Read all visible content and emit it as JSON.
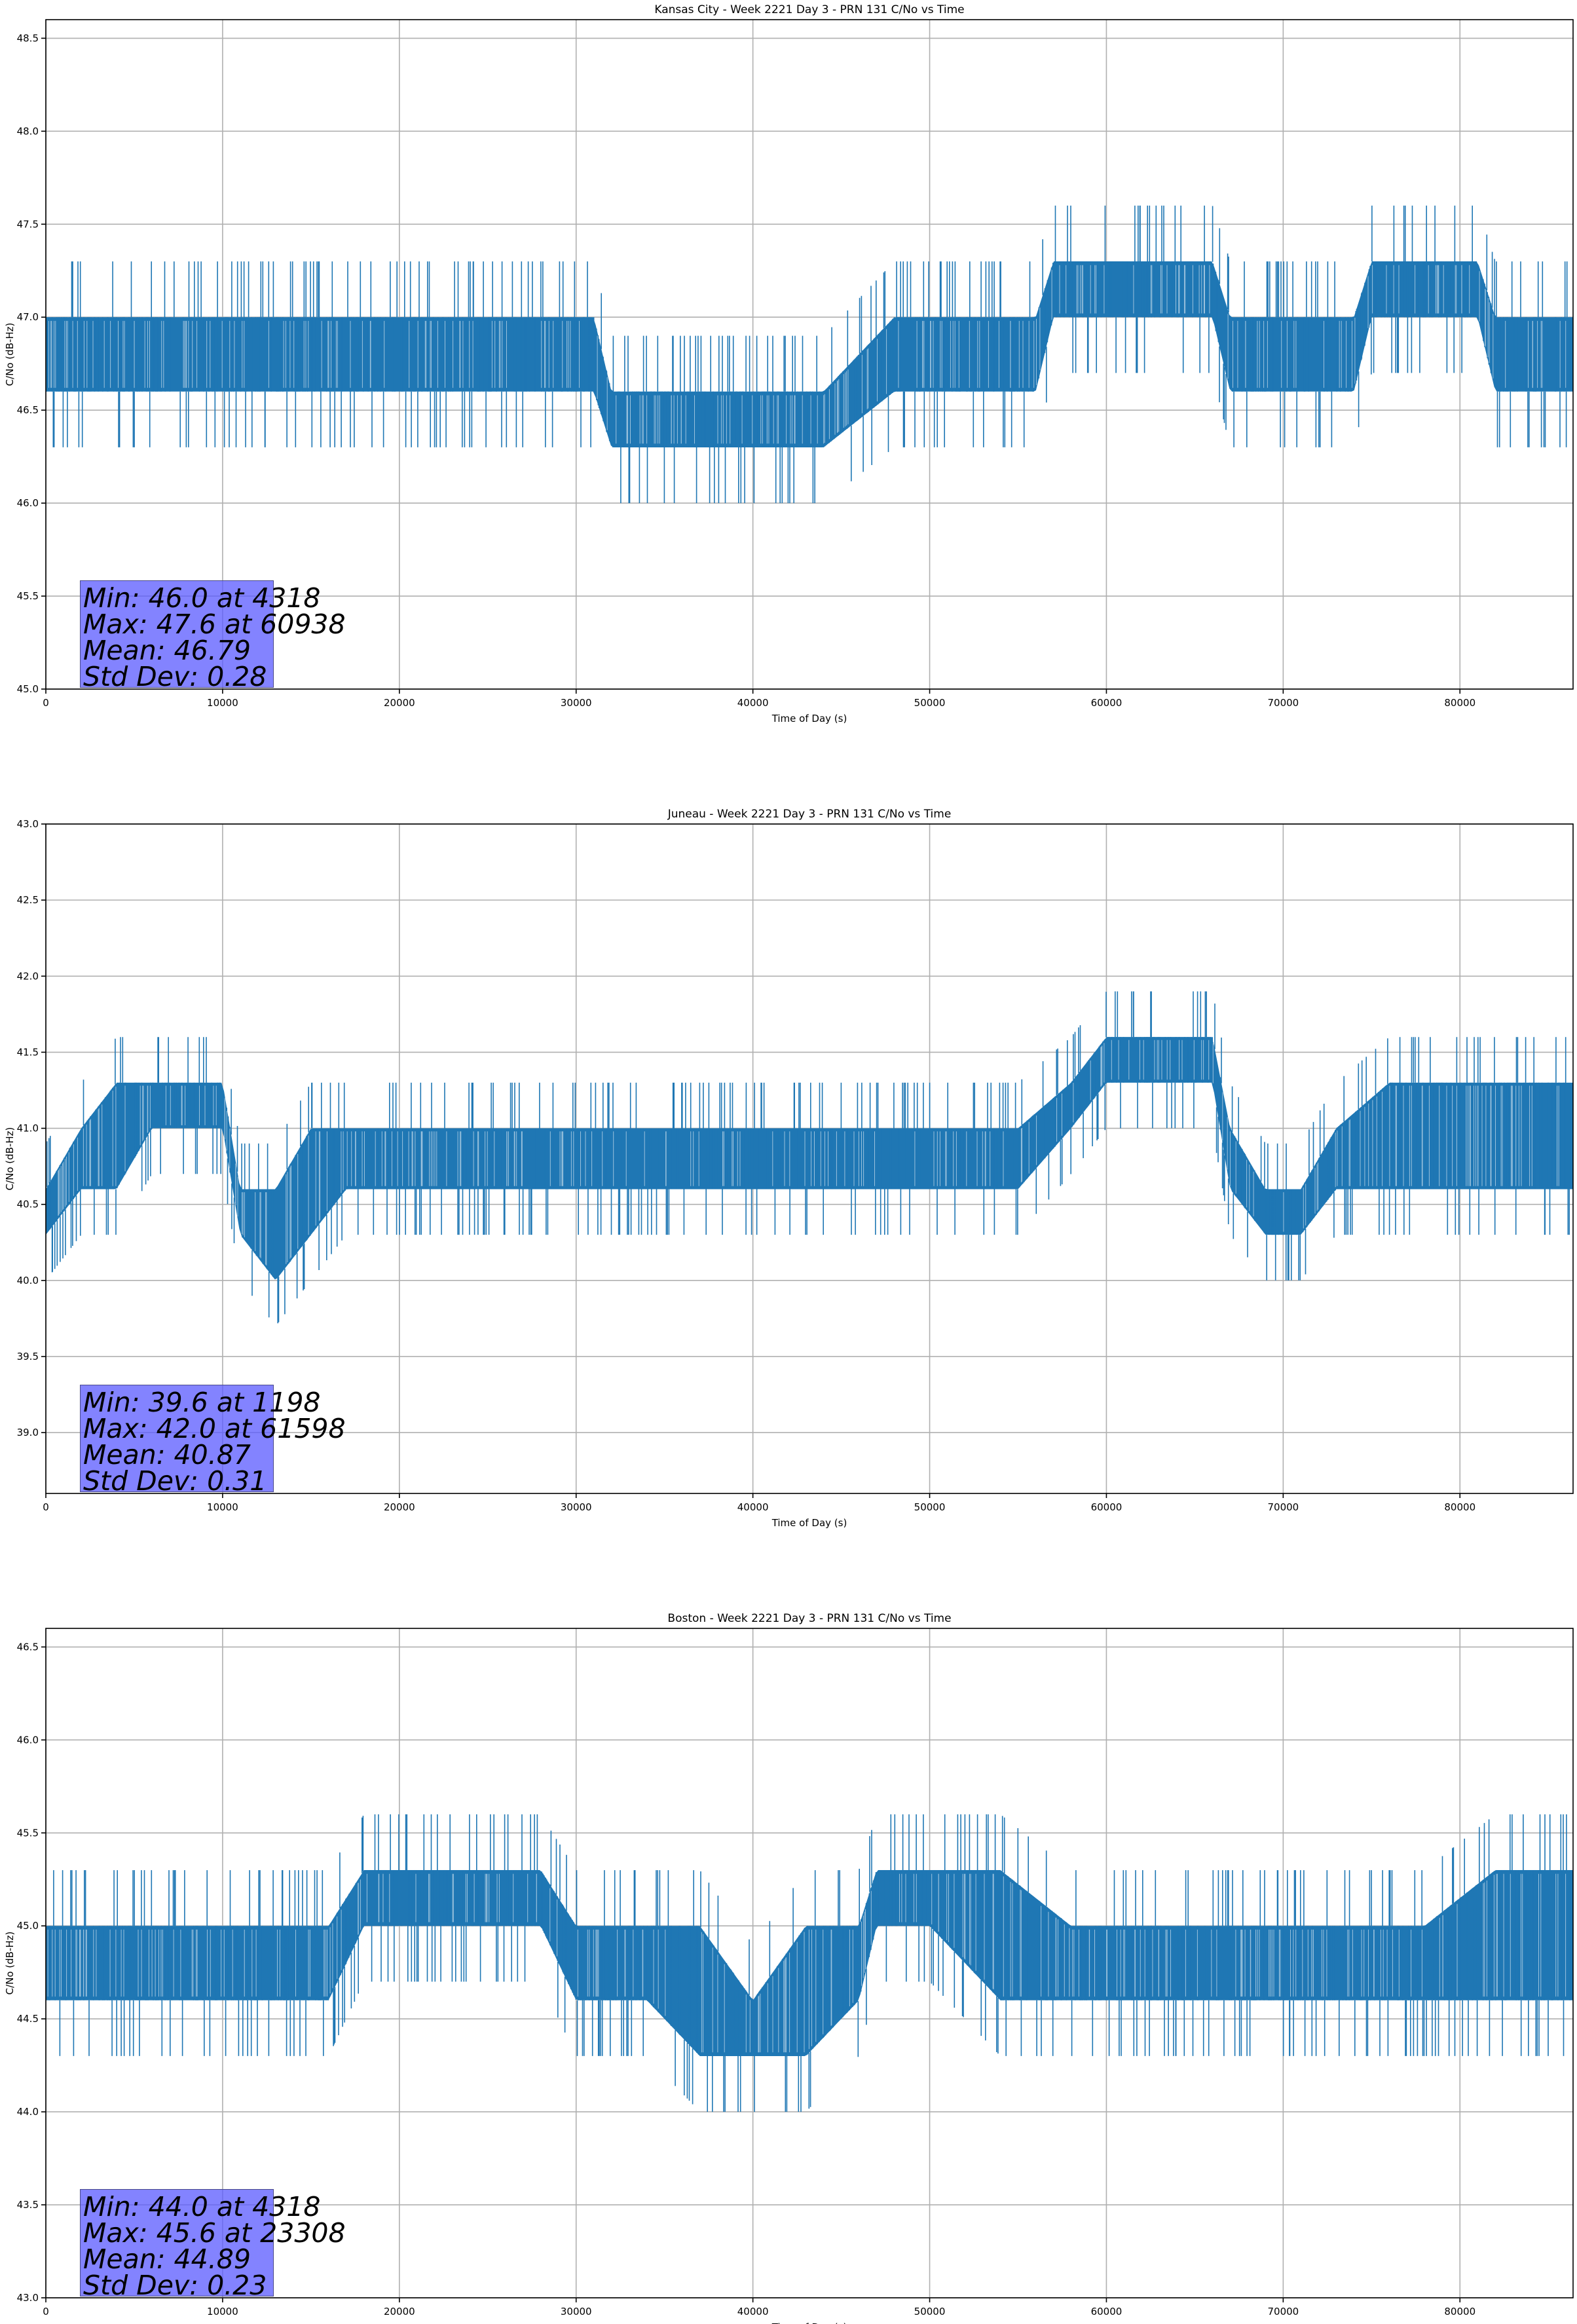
{
  "chart_data": [
    {
      "type": "line",
      "title": "Kansas City - Week 2221 Day 3 - PRN 131 C/No vs Time",
      "xlabel": "Time of Day (s)",
      "ylabel": "C/No (dB-Hz)",
      "xlim": [
        0,
        86400
      ],
      "ylim": [
        45.0,
        48.6
      ],
      "xticks": [
        "0",
        "10000",
        "20000",
        "30000",
        "40000",
        "50000",
        "60000",
        "70000",
        "80000"
      ],
      "yticks": [
        "45.0",
        "45.5",
        "46.0",
        "46.5",
        "47.0",
        "47.5",
        "48.0",
        "48.5"
      ],
      "grid": true,
      "color": "#1f77b4",
      "series": [
        {
          "x": [
            0,
            4000,
            8000,
            12000,
            16000,
            20000,
            24000,
            28000,
            31000,
            32000,
            36000,
            40000,
            44000,
            48000,
            52000,
            56000,
            57000,
            60000,
            62000,
            64000,
            66000,
            67000,
            70000,
            72000,
            74000,
            75000,
            78000,
            81000,
            82000,
            86400
          ],
          "y": [
            46.8,
            46.8,
            46.8,
            46.8,
            46.8,
            46.8,
            46.8,
            46.8,
            46.8,
            46.5,
            46.4,
            46.4,
            46.5,
            46.8,
            46.8,
            46.8,
            47.1,
            47.1,
            47.2,
            47.1,
            47.1,
            46.8,
            46.8,
            46.7,
            46.8,
            47.1,
            47.1,
            47.1,
            46.8,
            46.8
          ],
          "band_low": [
            46.6,
            46.6,
            46.6,
            46.6,
            46.6,
            46.6,
            46.6,
            46.6,
            46.6,
            46.3,
            46.3,
            46.3,
            46.3,
            46.6,
            46.6,
            46.6,
            47.0,
            47.0,
            47.0,
            47.0,
            47.0,
            46.6,
            46.6,
            46.6,
            46.6,
            47.0,
            47.0,
            47.0,
            46.6,
            46.6
          ],
          "band_high": [
            47.0,
            47.0,
            47.0,
            47.0,
            47.0,
            47.0,
            47.0,
            47.0,
            47.0,
            46.6,
            46.6,
            46.6,
            46.6,
            47.0,
            47.0,
            47.0,
            47.3,
            47.3,
            47.3,
            47.3,
            47.3,
            47.0,
            47.0,
            47.0,
            47.0,
            47.3,
            47.3,
            47.3,
            47.0,
            47.0
          ]
        }
      ],
      "stats": [
        "Min: 46.0 at 4318",
        "Max: 47.6 at 60938",
        "Mean: 46.79",
        "Std Dev: 0.28"
      ]
    },
    {
      "type": "line",
      "title": "Juneau - Week 2221 Day 3 - PRN 131 C/No vs Time",
      "xlabel": "Time of Day (s)",
      "ylabel": "C/No (dB-Hz)",
      "xlim": [
        0,
        86400
      ],
      "ylim": [
        38.6,
        43.0
      ],
      "xticks": [
        "0",
        "10000",
        "20000",
        "30000",
        "40000",
        "50000",
        "60000",
        "70000",
        "80000"
      ],
      "yticks": [
        "39.0",
        "39.5",
        "40.0",
        "40.5",
        "41.0",
        "41.5",
        "42.0",
        "42.5",
        "43.0"
      ],
      "grid": true,
      "color": "#1f77b4",
      "series": [
        {
          "x": [
            0,
            2000,
            4000,
            6000,
            8000,
            10000,
            11000,
            13000,
            15000,
            17000,
            20000,
            25000,
            30000,
            35000,
            40000,
            45000,
            50000,
            55000,
            58000,
            60000,
            63000,
            66000,
            67000,
            69000,
            71000,
            73000,
            76000,
            80000,
            84000,
            86400
          ],
          "y": [
            40.5,
            40.7,
            41.0,
            41.2,
            41.2,
            41.2,
            40.6,
            40.4,
            40.6,
            40.8,
            40.8,
            40.8,
            40.8,
            40.8,
            40.8,
            40.8,
            40.8,
            40.8,
            41.1,
            41.4,
            41.5,
            41.4,
            40.9,
            40.5,
            40.5,
            40.9,
            41.0,
            41.1,
            41.1,
            41.0
          ],
          "band_low": [
            40.3,
            40.6,
            40.6,
            41.0,
            41.0,
            41.0,
            40.3,
            40.0,
            40.3,
            40.6,
            40.6,
            40.6,
            40.6,
            40.6,
            40.6,
            40.6,
            40.6,
            40.6,
            41.0,
            41.3,
            41.3,
            41.3,
            40.6,
            40.3,
            40.3,
            40.6,
            40.6,
            40.6,
            40.6,
            40.6
          ],
          "band_high": [
            40.6,
            41.0,
            41.3,
            41.3,
            41.3,
            41.3,
            40.6,
            40.6,
            41.0,
            41.0,
            41.0,
            41.0,
            41.0,
            41.0,
            41.0,
            41.0,
            41.0,
            41.0,
            41.3,
            41.6,
            41.6,
            41.6,
            41.0,
            40.6,
            40.6,
            41.0,
            41.3,
            41.3,
            41.3,
            41.3
          ]
        }
      ],
      "stats": [
        "Min: 39.6 at 1198",
        "Max: 42.0 at 61598",
        "Mean: 40.87",
        "Std Dev: 0.31"
      ]
    },
    {
      "type": "line",
      "title": "Boston - Week 2221 Day 3 - PRN 131 C/No vs Time",
      "xlabel": "Time of Day (s)",
      "ylabel": "C/No (dB-Hz)",
      "xlim": [
        0,
        86400
      ],
      "ylim": [
        43.0,
        46.6
      ],
      "xticks": [
        "0",
        "10000",
        "20000",
        "30000",
        "40000",
        "50000",
        "60000",
        "70000",
        "80000"
      ],
      "yticks": [
        "43.0",
        "43.5",
        "44.0",
        "44.5",
        "45.0",
        "45.5",
        "46.0",
        "46.5"
      ],
      "grid": true,
      "color": "#1f77b4",
      "series": [
        {
          "x": [
            0,
            4000,
            8000,
            12000,
            16000,
            18000,
            20000,
            24000,
            28000,
            30000,
            34000,
            37000,
            40000,
            43000,
            46000,
            47000,
            50000,
            54000,
            58000,
            62000,
            66000,
            70000,
            74000,
            78000,
            82000,
            86400
          ],
          "y": [
            44.8,
            44.8,
            44.8,
            44.8,
            44.8,
            45.1,
            45.1,
            45.1,
            45.1,
            44.8,
            44.8,
            44.6,
            44.5,
            44.6,
            44.8,
            45.1,
            45.1,
            45.1,
            44.8,
            44.8,
            44.8,
            44.8,
            44.8,
            44.8,
            44.8,
            44.8
          ],
          "band_low": [
            44.6,
            44.6,
            44.6,
            44.6,
            44.6,
            45.0,
            45.0,
            45.0,
            45.0,
            44.6,
            44.6,
            44.3,
            44.3,
            44.3,
            44.6,
            45.0,
            45.0,
            44.6,
            44.6,
            44.6,
            44.6,
            44.6,
            44.6,
            44.6,
            44.6,
            44.6
          ],
          "band_high": [
            45.0,
            45.0,
            45.0,
            45.0,
            45.0,
            45.3,
            45.3,
            45.3,
            45.3,
            45.0,
            45.0,
            45.0,
            44.6,
            45.0,
            45.0,
            45.3,
            45.3,
            45.3,
            45.0,
            45.0,
            45.0,
            45.0,
            45.0,
            45.0,
            45.3,
            45.3
          ]
        }
      ],
      "stats": [
        "Min: 44.0 at 4318",
        "Max: 45.6 at 23308",
        "Mean: 44.89",
        "Std Dev: 0.23"
      ]
    }
  ]
}
